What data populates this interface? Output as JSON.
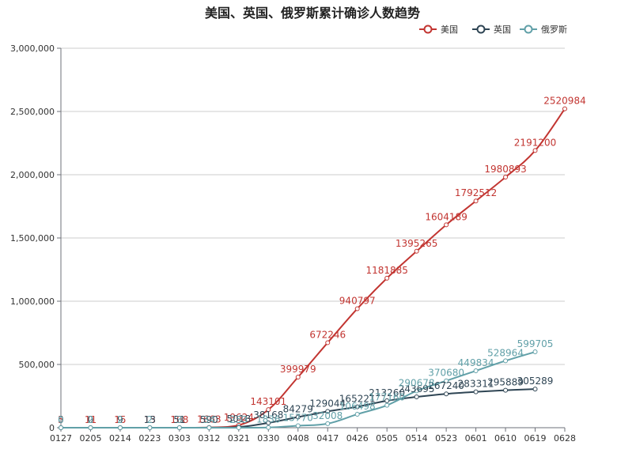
{
  "chart_data": {
    "type": "line",
    "title": "美国、英国、俄罗斯累计确诊人数趋势",
    "xlabel": "",
    "ylabel": "",
    "x_tick_labels": [
      "0127",
      "0205",
      "0214",
      "0223",
      "0303",
      "0312",
      "0321",
      "0330",
      "0408",
      "0417",
      "0426",
      "0505",
      "0514",
      "0523",
      "0601",
      "0610",
      "0619",
      "0628"
    ],
    "y_tick_labels": [
      "0",
      "500,000",
      "1,000,000",
      "1,500,000",
      "2,000,000",
      "2,500,000",
      "3,000,000"
    ],
    "ylim": [
      0,
      3000000
    ],
    "grid": "horizontal",
    "legend": "top-right",
    "series": [
      {
        "name": "美国",
        "color": "#c23531",
        "labels": [
          "5",
          "11",
          "15",
          "15",
          "108",
          "1663",
          "19624",
          "143101",
          "399979",
          "672246",
          "940797",
          "1181885",
          "1395265",
          "1604189",
          "1792512",
          "1980893",
          "2191200",
          "2520984"
        ],
        "values": [
          5,
          11,
          15,
          15,
          108,
          1663,
          19624,
          143101,
          399979,
          672246,
          940797,
          1181885,
          1395265,
          1604189,
          1792512,
          1980893,
          2191200,
          2520984
        ]
      },
      {
        "name": "英国",
        "color": "#2f4554",
        "labels": [
          "0",
          "0",
          "9",
          "13",
          "51",
          "590",
          "5018",
          "38168",
          "84279",
          "129044",
          "165221",
          "213260",
          "243695",
          "267240",
          "283311",
          "295889",
          "305289"
        ],
        "values": [
          0,
          0,
          9,
          13,
          51,
          590,
          5018,
          38168,
          84279,
          129044,
          165221,
          213260,
          243695,
          267240,
          283311,
          295889,
          305289
        ]
      },
      {
        "name": "俄罗斯",
        "color": "#61a0a8",
        "labels": [
          "0",
          "2",
          "2",
          "2",
          "3",
          "34",
          "253",
          "1836",
          "15770",
          "32008",
          "106498",
          "177160",
          "290678",
          "370680",
          "449834",
          "528964",
          "599705"
        ],
        "values": [
          0,
          2,
          2,
          2,
          3,
          34,
          253,
          1836,
          15770,
          32008,
          106498,
          177160,
          290678,
          370680,
          449834,
          528964,
          599705
        ]
      }
    ]
  }
}
